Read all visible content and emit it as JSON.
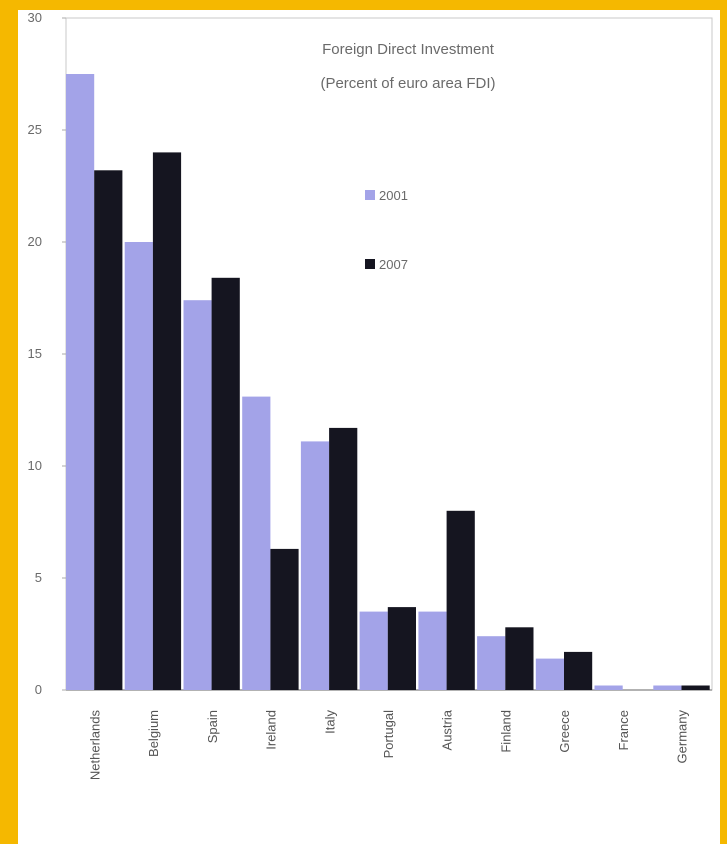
{
  "chart_data": {
    "type": "bar",
    "title": "Foreign Direct Investment",
    "subtitle": "(Percent of euro area FDI)",
    "xlabel": "",
    "ylabel": "",
    "categories": [
      "Netherlands",
      "Belgium",
      "Spain",
      "Ireland",
      "Italy",
      "Portugal",
      "Austria",
      "Finland",
      "Greece",
      "France",
      "Germany"
    ],
    "series": [
      {
        "name": "2001",
        "color": "#a3a3e8",
        "values": [
          27.5,
          20.0,
          17.4,
          13.1,
          11.1,
          3.5,
          3.5,
          2.4,
          1.4,
          0.2,
          0.2
        ]
      },
      {
        "name": "2007",
        "color": "#151520",
        "values": [
          23.2,
          24.0,
          18.4,
          6.3,
          11.7,
          3.7,
          8.0,
          2.8,
          1.7,
          0.0,
          0.2
        ]
      }
    ],
    "ylim": [
      0,
      30
    ],
    "yticks": [
      0,
      5,
      10,
      15,
      20,
      25,
      30
    ],
    "grid": false,
    "legend": "upper-center"
  },
  "colors": {
    "frame_border": "#f5b800",
    "axis": "#999999"
  }
}
